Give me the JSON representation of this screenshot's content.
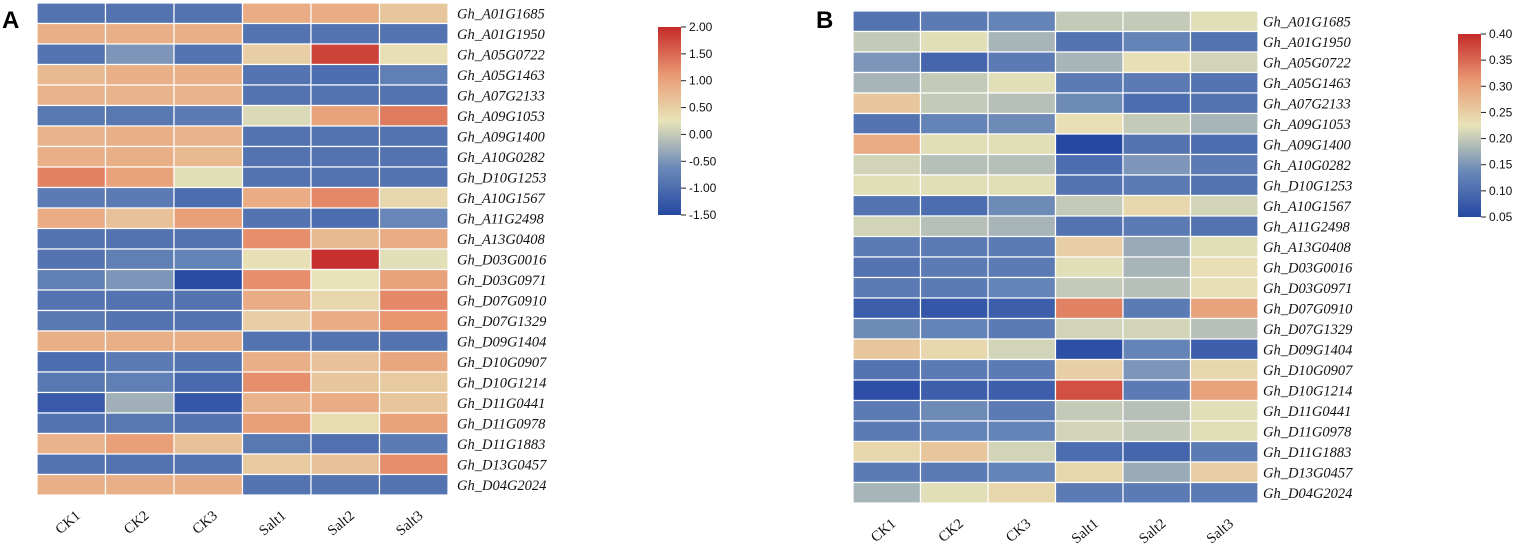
{
  "chart_data": [
    {
      "type": "heatmap",
      "panel_label": "A",
      "columns": [
        "CK1",
        "CK2",
        "CK3",
        "Salt1",
        "Salt2",
        "Salt3"
      ],
      "rows": [
        "Gh_A01G1685",
        "Gh_A01G1950",
        "Gh_A05G0722",
        "Gh_A05G1463",
        "Gh_A07G2133",
        "Gh_A09G1053",
        "Gh_A09G1400",
        "Gh_A10G0282",
        "Gh_D10G1253",
        "Gh_A10G1567",
        "Gh_A11G2498",
        "Gh_A13G0408",
        "Gh_D03G0016",
        "Gh_D03G0971",
        "Gh_D07G0910",
        "Gh_D07G1329",
        "Gh_D09G1404",
        "Gh_D10G0907",
        "Gh_D10G1214",
        "Gh_D11G0441",
        "Gh_D11G0978",
        "Gh_D11G1883",
        "Gh_D13G0457",
        "Gh_D04G2024"
      ],
      "values": [
        [
          -0.9,
          -0.9,
          -0.9,
          0.9,
          0.9,
          0.6
        ],
        [
          0.85,
          0.85,
          0.85,
          -0.9,
          -0.9,
          -0.9
        ],
        [
          -0.9,
          -0.5,
          -0.9,
          0.5,
          1.8,
          0.3
        ],
        [
          0.75,
          0.85,
          0.85,
          -0.9,
          -1.0,
          -0.75
        ],
        [
          0.8,
          0.8,
          0.8,
          -0.9,
          -0.9,
          -0.9
        ],
        [
          -0.85,
          -0.85,
          -0.8,
          0.15,
          1.0,
          1.35
        ],
        [
          0.8,
          0.85,
          0.8,
          -0.9,
          -0.9,
          -0.9
        ],
        [
          0.85,
          0.85,
          0.75,
          -0.9,
          -0.9,
          -0.9
        ],
        [
          1.3,
          1.0,
          0.2,
          -0.9,
          -0.9,
          -0.9
        ],
        [
          -0.8,
          -0.8,
          -1.0,
          0.9,
          1.25,
          0.4
        ],
        [
          0.9,
          0.65,
          1.05,
          -0.9,
          -1.0,
          -0.65
        ],
        [
          -0.9,
          -0.9,
          -0.9,
          1.2,
          0.75,
          0.9
        ],
        [
          -0.9,
          -0.75,
          -0.7,
          0.3,
          1.95,
          0.2
        ],
        [
          -0.75,
          -0.5,
          -1.45,
          1.2,
          0.25,
          1.0
        ],
        [
          -0.9,
          -0.9,
          -0.9,
          0.9,
          0.4,
          1.25
        ],
        [
          -0.85,
          -0.9,
          -0.9,
          0.5,
          0.9,
          1.15
        ],
        [
          0.85,
          0.85,
          0.85,
          -0.9,
          -0.9,
          -0.9
        ],
        [
          -1.0,
          -0.8,
          -0.9,
          0.85,
          0.65,
          0.95
        ],
        [
          -0.85,
          -0.75,
          -1.05,
          1.2,
          0.6,
          0.55
        ],
        [
          -1.25,
          -0.25,
          -1.3,
          0.8,
          0.9,
          0.6
        ],
        [
          -0.9,
          -0.85,
          -0.9,
          1.05,
          0.35,
          1.0
        ],
        [
          0.8,
          1.05,
          0.65,
          -0.85,
          -0.95,
          -0.8
        ],
        [
          -0.9,
          -0.9,
          -0.9,
          0.55,
          0.65,
          1.2
        ],
        [
          0.85,
          0.85,
          0.85,
          -0.9,
          -0.9,
          -0.9
        ]
      ],
      "colorbar": {
        "min": -1.5,
        "max": 2.0,
        "ticks": [
          "2.00",
          "1.50",
          "1.00",
          "0.50",
          "0.00",
          "-0.50",
          "-1.00",
          "-1.50"
        ]
      }
    },
    {
      "type": "heatmap",
      "panel_label": "B",
      "columns": [
        "CK1",
        "CK2",
        "CK3",
        "Salt1",
        "Salt2",
        "Salt3"
      ],
      "rows": [
        "Gh_A01G1685",
        "Gh_A01G1950",
        "Gh_A05G0722",
        "Gh_A05G1463",
        "Gh_A07G2133",
        "Gh_A09G1053",
        "Gh_A09G1400",
        "Gh_A10G0282",
        "Gh_D10G1253",
        "Gh_A10G1567",
        "Gh_A11G2498",
        "Gh_A13G0408",
        "Gh_D03G0016",
        "Gh_D03G0971",
        "Gh_D07G0910",
        "Gh_D07G1329",
        "Gh_D09G1404",
        "Gh_D10G0907",
        "Gh_D10G1214",
        "Gh_D11G0441",
        "Gh_D11G0978",
        "Gh_D11G1883",
        "Gh_D13G0457",
        "Gh_D04G2024"
      ],
      "values": [
        [
          0.11,
          0.12,
          0.13,
          0.2,
          0.2,
          0.22
        ],
        [
          0.2,
          0.22,
          0.18,
          0.11,
          0.13,
          0.11
        ],
        [
          0.15,
          0.09,
          0.12,
          0.18,
          0.23,
          0.21
        ],
        [
          0.18,
          0.2,
          0.22,
          0.12,
          0.12,
          0.11
        ],
        [
          0.26,
          0.2,
          0.19,
          0.14,
          0.1,
          0.11
        ],
        [
          0.11,
          0.13,
          0.14,
          0.23,
          0.2,
          0.18
        ],
        [
          0.29,
          0.22,
          0.22,
          0.05,
          0.11,
          0.1
        ],
        [
          0.21,
          0.19,
          0.19,
          0.1,
          0.15,
          0.12
        ],
        [
          0.22,
          0.22,
          0.22,
          0.11,
          0.12,
          0.11
        ],
        [
          0.11,
          0.1,
          0.14,
          0.2,
          0.24,
          0.21
        ],
        [
          0.21,
          0.19,
          0.18,
          0.11,
          0.12,
          0.11
        ],
        [
          0.12,
          0.12,
          0.12,
          0.25,
          0.17,
          0.22
        ],
        [
          0.11,
          0.12,
          0.12,
          0.22,
          0.18,
          0.23
        ],
        [
          0.12,
          0.12,
          0.13,
          0.2,
          0.19,
          0.23
        ],
        [
          0.08,
          0.07,
          0.08,
          0.33,
          0.12,
          0.3
        ],
        [
          0.14,
          0.13,
          0.12,
          0.21,
          0.21,
          0.19
        ],
        [
          0.26,
          0.24,
          0.21,
          0.06,
          0.13,
          0.08
        ],
        [
          0.11,
          0.12,
          0.12,
          0.25,
          0.15,
          0.24
        ],
        [
          0.06,
          0.08,
          0.08,
          0.37,
          0.12,
          0.3
        ],
        [
          0.12,
          0.14,
          0.12,
          0.2,
          0.19,
          0.22
        ],
        [
          0.12,
          0.13,
          0.13,
          0.21,
          0.2,
          0.22
        ],
        [
          0.24,
          0.26,
          0.21,
          0.1,
          0.09,
          0.12
        ],
        [
          0.12,
          0.12,
          0.13,
          0.24,
          0.17,
          0.25
        ],
        [
          0.18,
          0.22,
          0.24,
          0.12,
          0.12,
          0.12
        ]
      ],
      "colorbar": {
        "min": 0.05,
        "max": 0.4,
        "ticks": [
          "0.40",
          "0.35",
          "0.30",
          "0.25",
          "0.20",
          "0.15",
          "0.10",
          "0.05"
        ]
      }
    }
  ],
  "colors": {
    "low": "#2548a2",
    "mid_low": "#6a88b8",
    "mid": "#e8e4b8",
    "mid_high": "#e99872",
    "high": "#c42a2a",
    "cell_border": "#ffffff"
  }
}
